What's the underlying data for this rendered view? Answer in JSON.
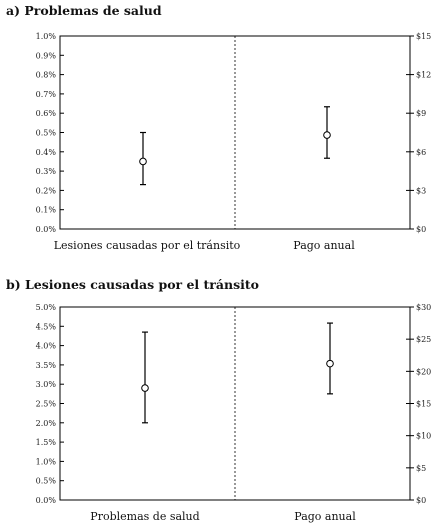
{
  "chart_data": [
    {
      "type": "scatter",
      "title": "a) Problemas de salud",
      "categories": [
        "Lesiones causadas por el tránsito",
        "Pago anual"
      ],
      "y_left": {
        "range": [
          0,
          1.0
        ],
        "ticks": [
          0,
          0.1,
          0.2,
          0.3,
          0.4,
          0.5,
          0.6,
          0.7,
          0.8,
          0.9,
          1.0
        ],
        "tick_labels": [
          "0.0%",
          "0.1%",
          "0.2%",
          "0.3%",
          "0.4%",
          "0.5%",
          "0.6%",
          "0.7%",
          "0.8%",
          "0.9%",
          "1.0%"
        ]
      },
      "y_right": {
        "range": [
          0,
          15
        ],
        "ticks": [
          0,
          3,
          6,
          9,
          12,
          15
        ],
        "tick_labels": [
          "$0",
          "$3",
          "$6",
          "$9",
          "$12",
          "$15"
        ]
      },
      "points": [
        {
          "category": "Lesiones causadas por el tránsito",
          "axis": "left",
          "value": 0.35,
          "low": 0.23,
          "high": 0.5
        },
        {
          "category": "Pago anual",
          "axis": "right",
          "value": 7.3,
          "low": 5.5,
          "high": 9.5
        }
      ],
      "grid": false
    },
    {
      "type": "scatter",
      "title": "b) Lesiones causadas por el tránsito",
      "categories": [
        "Problemas de salud",
        "Pago anual"
      ],
      "y_left": {
        "range": [
          0,
          5.0
        ],
        "ticks": [
          0,
          0.5,
          1.0,
          1.5,
          2.0,
          2.5,
          3.0,
          3.5,
          4.0,
          4.5,
          5.0
        ],
        "tick_labels": [
          "0.0%",
          "0.5%",
          "1.0%",
          "1.5%",
          "2.0%",
          "2.5%",
          "3.0%",
          "3.5%",
          "4.0%",
          "4.5%",
          "5.0%"
        ]
      },
      "y_right": {
        "range": [
          0,
          30
        ],
        "ticks": [
          0,
          5,
          10,
          15,
          20,
          25,
          30
        ],
        "tick_labels": [
          "$0",
          "$5",
          "$10",
          "$15",
          "$20",
          "$25",
          "$30"
        ]
      },
      "points": [
        {
          "category": "Problemas de salud",
          "axis": "left",
          "value": 2.9,
          "low": 2.0,
          "high": 4.35
        },
        {
          "category": "Pago anual",
          "axis": "right",
          "value": 21.2,
          "low": 16.5,
          "high": 27.5
        }
      ],
      "grid": false
    }
  ]
}
